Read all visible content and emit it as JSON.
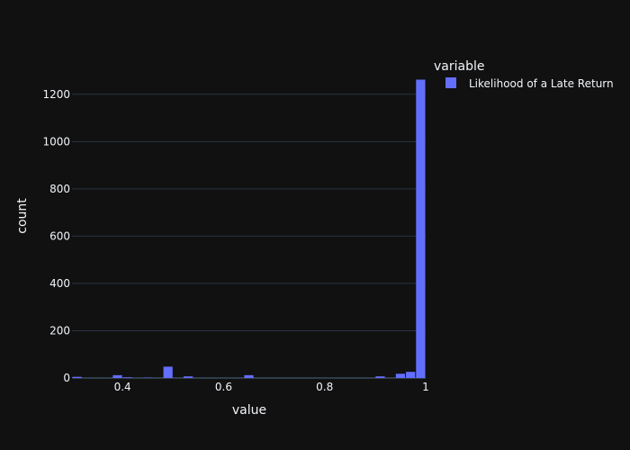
{
  "chart_data": {
    "type": "bar",
    "subtype": "histogram",
    "xlabel": "value",
    "ylabel": "count",
    "xlim": [
      0.3,
      1.0
    ],
    "ylim": [
      0,
      1340
    ],
    "bin_width": 0.02,
    "x_ticks": [
      {
        "value": 0.4,
        "label": "0.4"
      },
      {
        "value": 0.6,
        "label": "0.6"
      },
      {
        "value": 0.8,
        "label": "0.8"
      },
      {
        "value": 1.0,
        "label": "1"
      }
    ],
    "y_ticks": [
      {
        "value": 0,
        "label": "0"
      },
      {
        "value": 200,
        "label": "200"
      },
      {
        "value": 400,
        "label": "400"
      },
      {
        "value": 600,
        "label": "600"
      },
      {
        "value": 800,
        "label": "800"
      },
      {
        "value": 1000,
        "label": "1000"
      },
      {
        "value": 1200,
        "label": "1200"
      }
    ],
    "grid": true,
    "legend": {
      "title": "variable",
      "placement": "top-right"
    },
    "series": [
      {
        "name": "Likelihood of a Late Return",
        "color": "#636efa",
        "bins": [
          {
            "x": 0.3,
            "count": 5
          },
          {
            "x": 0.38,
            "count": 12
          },
          {
            "x": 0.4,
            "count": 3
          },
          {
            "x": 0.44,
            "count": 2
          },
          {
            "x": 0.48,
            "count": 48
          },
          {
            "x": 0.52,
            "count": 7
          },
          {
            "x": 0.64,
            "count": 12
          },
          {
            "x": 0.9,
            "count": 7
          },
          {
            "x": 0.94,
            "count": 18
          },
          {
            "x": 0.96,
            "count": 26
          },
          {
            "x": 0.98,
            "count": 1262
          }
        ]
      }
    ]
  }
}
